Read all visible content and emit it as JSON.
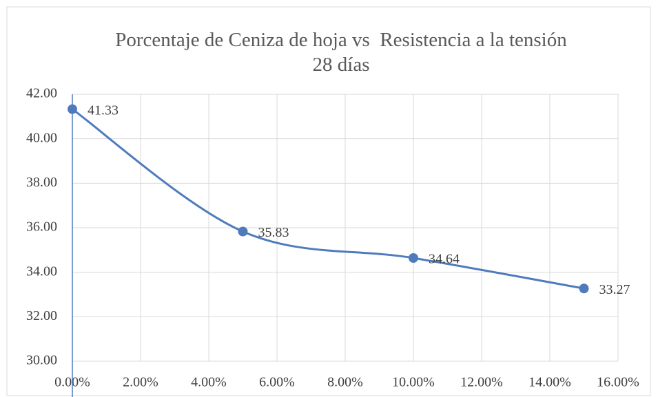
{
  "chart_data": {
    "type": "scatter_smooth",
    "title": "Porcentaje de Ceniza de hoja vs  Resistencia a la tensión 28 días",
    "x": [
      0,
      5,
      10,
      15
    ],
    "series": [
      {
        "name": "Resistencia",
        "color": "#4f7bbd",
        "values": [
          41.33,
          35.83,
          34.64,
          33.27
        ]
      }
    ],
    "xlim": [
      0,
      16
    ],
    "xticks": [
      {
        "value": 0,
        "label": "0.00%"
      },
      {
        "value": 2,
        "label": "2.00%"
      },
      {
        "value": 4,
        "label": "4.00%"
      },
      {
        "value": 6,
        "label": "6.00%"
      },
      {
        "value": 8,
        "label": "8.00%"
      },
      {
        "value": 10,
        "label": "10.00%"
      },
      {
        "value": 12,
        "label": "12.00%"
      },
      {
        "value": 14,
        "label": "14.00%"
      },
      {
        "value": 16,
        "label": "16.00%"
      }
    ],
    "ylim": [
      30,
      42
    ],
    "yticks": [
      {
        "value": 30,
        "label": "30.00"
      },
      {
        "value": 32,
        "label": "32.00"
      },
      {
        "value": 34,
        "label": "34.00"
      },
      {
        "value": 36,
        "label": "36.00"
      },
      {
        "value": 38,
        "label": "38.00"
      },
      {
        "value": 40,
        "label": "40.00"
      },
      {
        "value": 42,
        "label": "42.00"
      }
    ],
    "grid": true
  }
}
